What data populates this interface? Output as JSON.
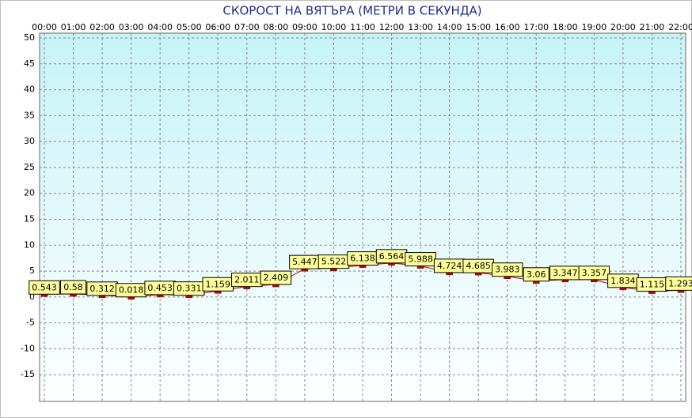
{
  "chart_data": {
    "type": "line",
    "title": "СКОРОСТ НА ВЯТЪРА (МЕТРИ В СЕКУНДА)",
    "categories": [
      "00:00",
      "01:00",
      "02:00",
      "03:00",
      "04:00",
      "05:00",
      "06:00",
      "07:00",
      "08:00",
      "09:00",
      "10:00",
      "11:00",
      "12:00",
      "13:00",
      "14:00",
      "15:00",
      "16:00",
      "17:00",
      "18:00",
      "19:00",
      "20:00",
      "21:00",
      "22:00"
    ],
    "series": [
      {
        "color": "#cc0000",
        "values": [
          0.543,
          0.58,
          0.312,
          0.018,
          0.453,
          0.331,
          1.159,
          2.011,
          2.409,
          5.447,
          5.522,
          6.138,
          6.564,
          5.988,
          4.724,
          4.685,
          3.983,
          3.06,
          3.347,
          3.357,
          1.834,
          1.115,
          1.293
        ]
      }
    ],
    "ylim": [
      -20,
      50
    ],
    "yticks": [
      -15,
      -10,
      -5,
      0,
      5,
      10,
      15,
      20,
      25,
      30,
      35,
      40,
      45,
      50
    ],
    "grid": true
  }
}
